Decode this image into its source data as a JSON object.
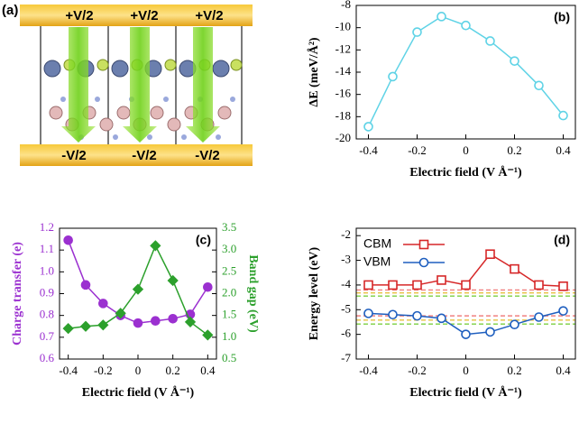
{
  "panel_a": {
    "label": "(a)",
    "top_labels": [
      "+V/2",
      "+V/2",
      "+V/2"
    ],
    "bottom_labels": [
      "-V/2",
      "-V/2",
      "-V/2"
    ]
  },
  "chart_data": [
    {
      "type": "line",
      "panel_label": "(b)",
      "x_label": "Electric field (V Å⁻¹)",
      "y_label": "ΔE (meV/Å²)",
      "x": [
        -0.4,
        -0.3,
        -0.2,
        -0.1,
        0,
        0.1,
        0.2,
        0.3,
        0.4
      ],
      "series": [
        {
          "color": "#5fd3e6",
          "marker": "circle",
          "filled": false,
          "values": [
            -18.9,
            -14.4,
            -10.4,
            -9.0,
            -9.8,
            -11.2,
            -13.0,
            -15.2,
            -17.9
          ]
        }
      ],
      "xlim": [
        -0.45,
        0.45
      ],
      "xticks": [
        -0.4,
        -0.2,
        0,
        0.2,
        0.4
      ],
      "ylim": [
        -20,
        -8
      ],
      "yticks": [
        -20,
        -18,
        -16,
        -14,
        -12,
        -10,
        -8
      ]
    },
    {
      "type": "line",
      "panel_label": "(c)",
      "x_label": "Electric field (V Å⁻¹)",
      "y_label": "Charge transfer (e)",
      "y_label_color": "#9b30d0",
      "y2_label": "Band gap (eV)",
      "y2_label_color": "#2ca02c",
      "x": [
        -0.4,
        -0.3,
        -0.2,
        -0.1,
        0,
        0.1,
        0.2,
        0.3,
        0.4
      ],
      "series": [
        {
          "color": "#9b30d0",
          "marker": "circle",
          "filled": true,
          "values": [
            1.145,
            0.94,
            0.855,
            0.8,
            0.765,
            0.775,
            0.785,
            0.805,
            0.93
          ]
        },
        {
          "color": "#2ca02c",
          "marker": "diamond",
          "filled": true,
          "axis": "y2",
          "values": [
            1.2,
            1.25,
            1.28,
            1.55,
            2.1,
            3.1,
            2.3,
            1.35,
            1.05
          ]
        }
      ],
      "xlim": [
        -0.45,
        0.45
      ],
      "xticks": [
        -0.4,
        -0.2,
        0,
        0.2,
        0.4
      ],
      "ylim": [
        0.6,
        1.2
      ],
      "yticks": [
        0.6,
        0.7,
        0.8,
        0.9,
        {
          "value": 1,
          "label": "1.0"
        },
        1.1,
        1.2
      ],
      "y_tick_color": "#9b30d0",
      "y2lim": [
        0.5,
        3.5
      ],
      "y2ticks": [
        0.5,
        {
          "value": 1,
          "label": "1.0"
        },
        1.5,
        {
          "value": 2,
          "label": "2.0"
        },
        2.5,
        {
          "value": 3,
          "label": "3.0"
        },
        3.5
      ],
      "y2_tick_color": "#2ca02c"
    },
    {
      "type": "line",
      "panel_label": "(d)",
      "x_label": "Electric field (V Å⁻¹)",
      "y_label": "Energy level (eV)",
      "x": [
        -0.4,
        -0.3,
        -0.2,
        -0.1,
        0,
        0.1,
        0.2,
        0.3,
        0.4
      ],
      "series": [
        {
          "name": "CBM",
          "color": "#d62728",
          "marker": "square",
          "filled": false,
          "values": [
            -4.0,
            -4.0,
            -4.0,
            -3.8,
            -4.0,
            -2.75,
            -3.35,
            -4.0,
            -4.05
          ]
        },
        {
          "name": "VBM",
          "color": "#1f5fbf",
          "marker": "circle",
          "filled": false,
          "values": [
            -5.15,
            -5.2,
            -5.25,
            -5.35,
            -6.0,
            -5.9,
            -5.6,
            -5.3,
            -5.05
          ]
        }
      ],
      "reference_lines": [
        {
          "value": -4.2,
          "color": "#f08080"
        },
        {
          "value": -4.32,
          "color": "#e8c040"
        },
        {
          "value": -4.45,
          "color": "#7ccf40"
        },
        {
          "value": -5.25,
          "color": "#f08080"
        },
        {
          "value": -5.42,
          "color": "#e8c040"
        },
        {
          "value": -5.58,
          "color": "#7ccf40"
        }
      ],
      "xlim": [
        -0.45,
        0.45
      ],
      "xticks": [
        -0.4,
        -0.2,
        0,
        0.2,
        0.4
      ],
      "ylim": [
        -7,
        -1.7
      ],
      "yticks": [
        -7,
        -6,
        -5,
        -4,
        -3,
        -2
      ],
      "legend": "upper left"
    }
  ]
}
